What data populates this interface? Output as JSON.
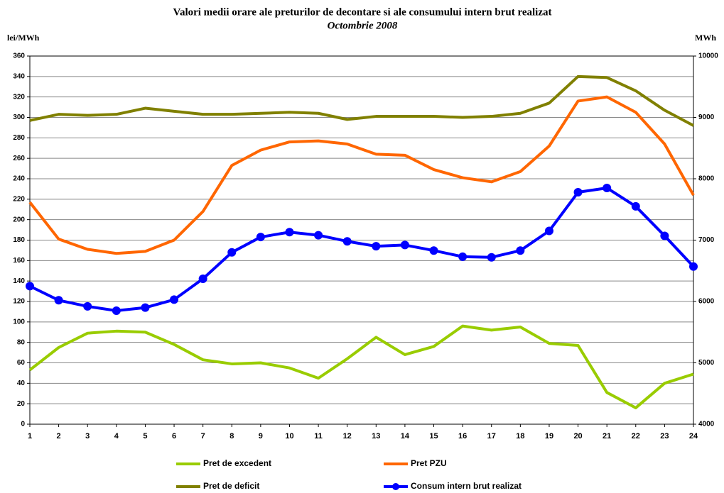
{
  "chart_data": {
    "type": "line",
    "title": "Valori medii orare ale preturilor de decontare si ale consumului intern brut realizat",
    "subtitle": "Octombrie 2008",
    "y_label": "lei/MWh",
    "y2_label": "MWh",
    "categories": [
      "1",
      "2",
      "3",
      "4",
      "5",
      "6",
      "7",
      "8",
      "9",
      "10",
      "11",
      "12",
      "13",
      "14",
      "15",
      "16",
      "17",
      "18",
      "19",
      "20",
      "21",
      "22",
      "23",
      "24"
    ],
    "ylim": [
      0,
      360
    ],
    "yticks": [
      0,
      20,
      40,
      60,
      80,
      100,
      120,
      140,
      160,
      180,
      200,
      220,
      240,
      260,
      280,
      300,
      320,
      340,
      360
    ],
    "y2lim": [
      4000,
      10000
    ],
    "y2ticks": [
      4000,
      5000,
      6000,
      7000,
      8000,
      9000,
      10000
    ],
    "grid": true,
    "series": [
      {
        "name": "Pret de excedent",
        "color": "#99cc00",
        "values": [
          53,
          75,
          89,
          91,
          90,
          78,
          63,
          59,
          60,
          55,
          45,
          64,
          85,
          68,
          76,
          96,
          92,
          95,
          79,
          77,
          31,
          16,
          40,
          49
        ]
      },
      {
        "name": "Pret PZU",
        "color": "#ff6600",
        "values": [
          217,
          181,
          171,
          167,
          169,
          180,
          208,
          253,
          268,
          276,
          277,
          274,
          264,
          263,
          249,
          241,
          237,
          247,
          272,
          316,
          320,
          305,
          274,
          224
        ]
      },
      {
        "name": "Pret de deficit",
        "color": "#808000",
        "values": [
          297,
          303,
          302,
          303,
          309,
          306,
          303,
          303,
          304,
          305,
          304,
          298,
          301,
          301,
          301,
          300,
          301,
          304,
          314,
          340,
          339,
          326,
          307,
          292
        ]
      },
      {
        "name": "Consum intern brut realizat",
        "color": "#0000ff",
        "axis": "y2",
        "marker": true,
        "values": [
          6250,
          6020,
          5920,
          5850,
          5900,
          6030,
          6370,
          6800,
          7050,
          7130,
          7080,
          6980,
          6900,
          6920,
          6830,
          6730,
          6720,
          6830,
          7150,
          7780,
          7850,
          7550,
          7070,
          6570
        ]
      }
    ]
  }
}
